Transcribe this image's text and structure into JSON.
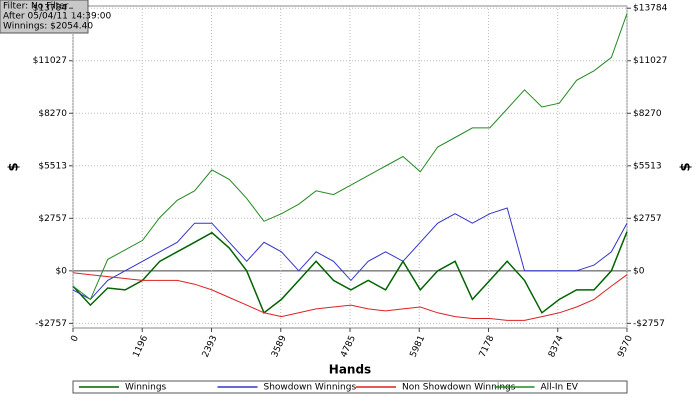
{
  "chart_data": {
    "type": "line",
    "annotations": [
      "Filter: No Filter",
      "After 05/04/11 14:39:00",
      "Winnings: $2054.40"
    ],
    "x_label": "Hands",
    "y_label": "$",
    "xlim": [
      0,
      9570
    ],
    "xticks": [
      0,
      1196,
      2393,
      3589,
      4785,
      5981,
      7178,
      8374,
      9570
    ],
    "ylim": [
      -3000,
      13900
    ],
    "yticks": [
      {
        "value": -2757,
        "label": "-$2757"
      },
      {
        "value": 0,
        "label": "$0"
      },
      {
        "value": 2757,
        "label": "$2757"
      },
      {
        "value": 5513,
        "label": "$5513"
      },
      {
        "value": 8270,
        "label": "$8270"
      },
      {
        "value": 11027,
        "label": "$11027"
      },
      {
        "value": 13784,
        "label": "$13784"
      }
    ],
    "grid": true,
    "legend": "bottom",
    "x": [
      0,
      300,
      600,
      900,
      1200,
      1500,
      1800,
      2100,
      2400,
      2700,
      3000,
      3300,
      3600,
      3900,
      4200,
      4500,
      4800,
      5100,
      5400,
      5700,
      6000,
      6300,
      6600,
      6900,
      7200,
      7500,
      7800,
      8100,
      8400,
      8700,
      9000,
      9300,
      9570
    ],
    "series": [
      {
        "name": "Winnings",
        "color": "#006400",
        "values": [
          -800,
          -1800,
          -900,
          -1000,
          -500,
          500,
          1000,
          1500,
          2000,
          1200,
          0,
          -2200,
          -1500,
          -500,
          500,
          -500,
          -1000,
          -500,
          -1000,
          500,
          -1000,
          0,
          500,
          -1500,
          -500,
          500,
          -500,
          -2200,
          -1500,
          -1000,
          -1000,
          0,
          2054
        ]
      },
      {
        "name": "Showdown Winnings",
        "color": "#3333cc",
        "values": [
          -1000,
          -1500,
          -500,
          0,
          500,
          1000,
          1500,
          2500,
          2500,
          1500,
          500,
          1500,
          1000,
          0,
          1000,
          500,
          -500,
          500,
          1000,
          500,
          1500,
          2500,
          3000,
          2500,
          3000,
          3300,
          0,
          0,
          0,
          0,
          300,
          1000,
          2500
        ]
      },
      {
        "name": "Non Showdown Winnings",
        "color": "#dd2222",
        "values": [
          -100,
          -200,
          -300,
          -400,
          -500,
          -500,
          -500,
          -700,
          -1000,
          -1400,
          -1800,
          -2200,
          -2400,
          -2200,
          -2000,
          -1900,
          -1800,
          -2000,
          -2100,
          -2000,
          -1900,
          -2200,
          -2400,
          -2500,
          -2500,
          -2600,
          -2600,
          -2400,
          -2200,
          -1900,
          -1500,
          -800,
          -200
        ]
      },
      {
        "name": "All-In EV",
        "color": "#228b22",
        "values": [
          -800,
          -1500,
          600,
          1100,
          1600,
          2800,
          3700,
          4200,
          5300,
          4800,
          3800,
          2600,
          3000,
          3500,
          4200,
          4000,
          4500,
          5000,
          5500,
          6000,
          5200,
          6500,
          7000,
          7500,
          7500,
          8500,
          9500,
          8600,
          8800,
          10000,
          10500,
          11200,
          13500
        ]
      }
    ]
  }
}
